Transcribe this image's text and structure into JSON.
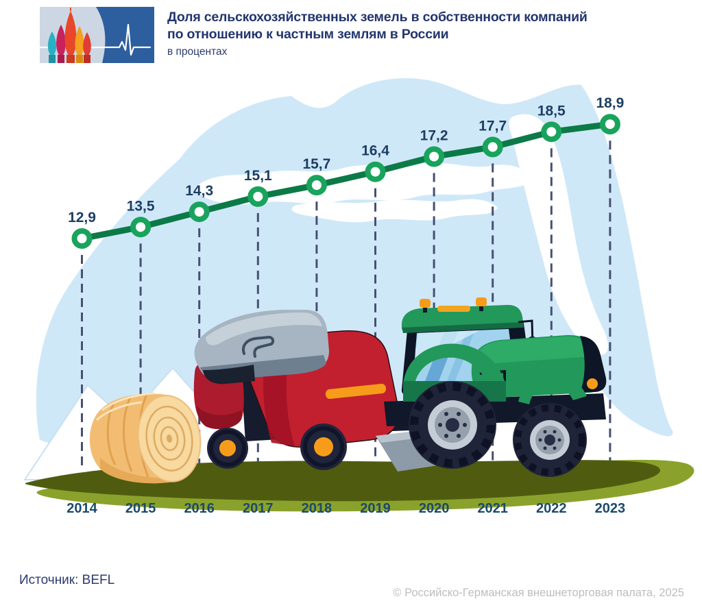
{
  "header": {
    "title_line1": "Доля сельскохозяйственных земель в собственности компаний",
    "title_line2": "по отношению к частным землям в России",
    "subtitle": "в процентах"
  },
  "logo": {
    "name": "chamber-pulse-logo",
    "panel_color": "#2d5f9e",
    "background_color": "#ccd7e3",
    "pulse_color": "#ffffff",
    "dome_colors": [
      "#2ab0c5",
      "#c9215d",
      "#e8472b",
      "#f4a11f",
      "#e23c34"
    ]
  },
  "chart_data": {
    "type": "line",
    "title": "Доля сельскохозяйственных земель в собственности компаний по отношению к частным землям в России",
    "subtitle": "в процентах",
    "categories": [
      "2014",
      "2015",
      "2016",
      "2017",
      "2018",
      "2019",
      "2020",
      "2021",
      "2022",
      "2023"
    ],
    "values": [
      12.9,
      13.5,
      14.3,
      15.1,
      15.7,
      16.4,
      17.2,
      17.7,
      18.5,
      18.9
    ],
    "value_labels": [
      "12,9",
      "13,5",
      "14,3",
      "15,1",
      "15,7",
      "16,4",
      "17,2",
      "17,7",
      "18,5",
      "18,9"
    ],
    "unit": "процент",
    "ylim": [
      12.9,
      18.9
    ],
    "grid": "dashed-vertical-per-point",
    "line_color": "#0c7a47",
    "marker_fill": "#ffffff",
    "marker_stroke": "#19a35c",
    "gridline_color": "#474f72",
    "value_label_color": "#1d3e63",
    "axis_label_color": "#1b4a6b"
  },
  "scene": {
    "illustrations": [
      "sky-hill-shape",
      "clouds",
      "snow-mountains",
      "hay-bale",
      "round-baler",
      "tractor",
      "green-field"
    ],
    "sky_shape_color": "#cfe8f8",
    "field_dark_color": "#4f5c10",
    "field_light_color": "#8aa22b"
  },
  "footer": {
    "source": "Источник: BEFL",
    "copyright": "© Российско-Германская внешнеторговая палата, 2025"
  }
}
